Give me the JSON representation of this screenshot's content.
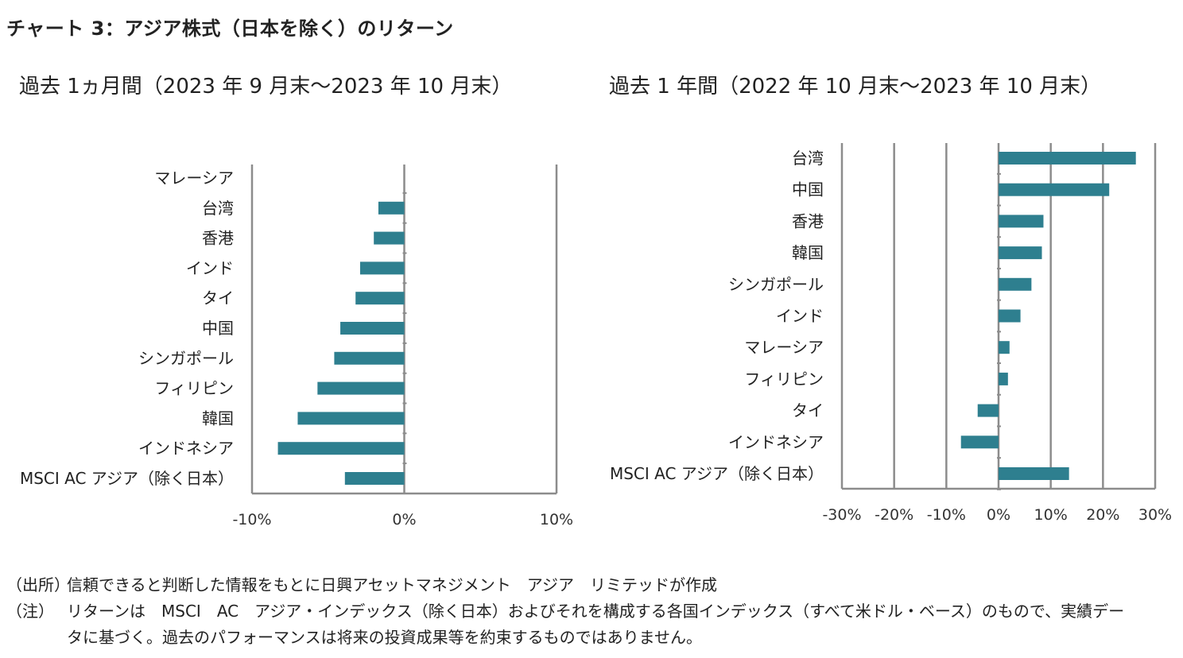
{
  "title": "チャート 3：アジア株式（日本を除く）のリターン",
  "chart_data": [
    {
      "type": "bar",
      "orientation": "horizontal",
      "title": "過去 1ヵ月間（2023 年 9 月末～2023 年 10 月末）",
      "categories": [
        "マレーシア",
        "台湾",
        "香港",
        "インド",
        "タイ",
        "中国",
        "シンガポール",
        "フィリピン",
        "韓国",
        "インドネシア",
        "MSCI AC アジア（除く日本）"
      ],
      "values": [
        0.0,
        -1.7,
        -2.0,
        -2.9,
        -3.2,
        -4.2,
        -4.6,
        -5.7,
        -7.0,
        -8.3,
        -3.9
      ],
      "xlim": [
        -10,
        10
      ],
      "xticks": [
        -10,
        0,
        10
      ],
      "xtick_labels": [
        "-10%",
        "0%",
        "10%"
      ],
      "grid": true,
      "bar_color": "#2e7f8f",
      "grid_color": "#8c8c8c"
    },
    {
      "type": "bar",
      "orientation": "horizontal",
      "title": "過去 1 年間（2022 年 10 月末～2023 年 10 月末）",
      "categories": [
        "台湾",
        "中国",
        "香港",
        "韓国",
        "シンガポール",
        "インド",
        "マレーシア",
        "フィリピン",
        "タイ",
        "インドネシア",
        "MSCI AC アジア（除く日本）"
      ],
      "values": [
        26.3,
        21.2,
        8.6,
        8.3,
        6.3,
        4.2,
        2.1,
        1.8,
        -4.0,
        -7.2,
        13.5
      ],
      "xlim": [
        -30,
        30
      ],
      "xticks": [
        -30,
        -20,
        -10,
        0,
        10,
        20,
        30
      ],
      "xtick_labels": [
        "-30%",
        "-20%",
        "-10%",
        "0%",
        "10%",
        "20%",
        "30%"
      ],
      "grid": true,
      "bar_color": "#2e7f8f",
      "grid_color": "#8c8c8c"
    }
  ],
  "notes": {
    "source_head": "（出所）",
    "source_text": "信頼できると判断した情報をもとに日興アセットマネジメント　アジア　リミテッドが作成",
    "note_head": "（注）",
    "note_text_1": "リターンは　MSCI　AC　アジア・インデックス（除く日本）およびそれを構成する各国インデックス（すべて米ドル・ベース）のもので、実績デー",
    "note_text_2": "タに基づく。過去のパフォーマンスは将来の投資成果等を約束するものではありません。"
  }
}
